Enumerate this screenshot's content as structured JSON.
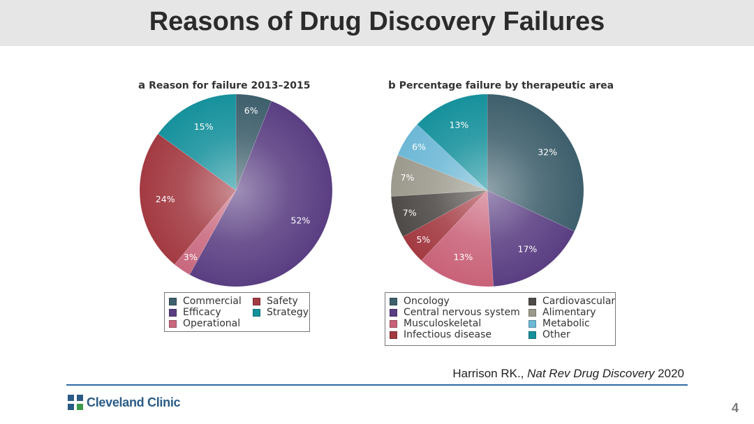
{
  "slide": {
    "title": "Reasons of Drug Discovery Failures",
    "citation_prefix": "Harrison RK., ",
    "citation_journal": "Nat Rev Drug Discovery",
    "citation_year": " 2020",
    "logo_text": "Cleveland Clinic",
    "logo_icon": "cleveland-clinic-cross-icon",
    "page_number": "4"
  },
  "chart_data": [
    {
      "type": "pie",
      "panel_letter": "a",
      "title": "Reason for failure 2013–2015",
      "start_angle_deg": 0,
      "direction": "clockwise",
      "slices": [
        {
          "label": "Commercial",
          "value": 6,
          "text": "6%",
          "color": "#3e5f6c"
        },
        {
          "label": "Efficacy",
          "value": 52,
          "text": "52%",
          "color": "#5a3e82"
        },
        {
          "label": "Operational",
          "value": 3,
          "text": "3%",
          "color": "#c9687f"
        },
        {
          "label": "Safety",
          "value": 24,
          "text": "24%",
          "color": "#a33a42"
        },
        {
          "label": "Strategy",
          "value": 15,
          "text": "15%",
          "color": "#16919c"
        }
      ],
      "legend": [
        {
          "label": "Commercial",
          "color": "#3e5f6c"
        },
        {
          "label": "Safety",
          "color": "#a33a42"
        },
        {
          "label": "Efficacy",
          "color": "#5a3e82"
        },
        {
          "label": "Strategy",
          "color": "#16919c"
        },
        {
          "label": "Operational",
          "color": "#c9687f"
        }
      ]
    },
    {
      "type": "pie",
      "panel_letter": "b",
      "title": "Percentage failure by therapeutic area",
      "start_angle_deg": 0,
      "direction": "clockwise",
      "slices": [
        {
          "label": "Oncology",
          "value": 32,
          "text": "32%",
          "color": "#3e5f6c"
        },
        {
          "label": "Central nervous system",
          "value": 17,
          "text": "17%",
          "color": "#5a3e82"
        },
        {
          "label": "Musculoskeletal",
          "value": 13,
          "text": "13%",
          "color": "#c96279"
        },
        {
          "label": "Infectious disease",
          "value": 5,
          "text": "5%",
          "color": "#a33a42"
        },
        {
          "label": "Cardiovascular",
          "value": 7,
          "text": "7%",
          "color": "#4e4a47"
        },
        {
          "label": "Alimentary",
          "value": 7,
          "text": "7%",
          "color": "#9c9a8d"
        },
        {
          "label": "Metabolic",
          "value": 6,
          "text": "6%",
          "color": "#6db8d6"
        },
        {
          "label": "Other",
          "value": 13,
          "text": "13%",
          "color": "#16919c"
        }
      ],
      "legend": [
        {
          "label": "Oncology",
          "color": "#3e5f6c"
        },
        {
          "label": "Cardiovascular",
          "color": "#4e4a47"
        },
        {
          "label": "Central nervous system",
          "color": "#5a3e82"
        },
        {
          "label": "Alimentary",
          "color": "#9c9a8d"
        },
        {
          "label": "Musculoskeletal",
          "color": "#c96279"
        },
        {
          "label": "Metabolic",
          "color": "#6db8d6"
        },
        {
          "label": "Infectious disease",
          "color": "#a33a42"
        },
        {
          "label": "Other",
          "color": "#16919c"
        }
      ]
    }
  ]
}
